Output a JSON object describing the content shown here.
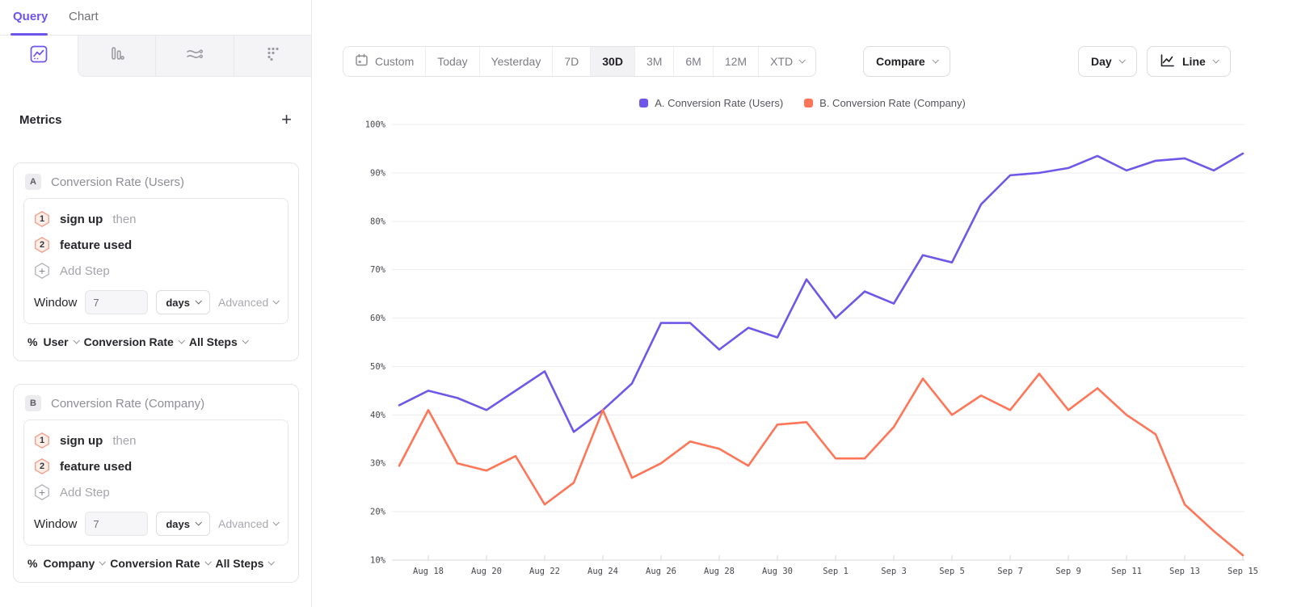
{
  "sidebar": {
    "tabs": {
      "query": "Query",
      "chart": "Chart"
    },
    "chart_type_icons": [
      "line-chart-icon",
      "bar-chart-icon",
      "flow-icon",
      "scatter-icon"
    ],
    "metrics": {
      "title": "Metrics",
      "add_label": "+"
    },
    "cards": [
      {
        "badge": "A",
        "title": "Conversion Rate (Users)",
        "steps": [
          {
            "num": "1",
            "event": "sign up",
            "suffix": "then"
          },
          {
            "num": "2",
            "event": "feature used",
            "suffix": ""
          }
        ],
        "add_step": "Add Step",
        "window_label": "Window",
        "window_value": "7",
        "window_unit": "days",
        "advanced": "Advanced",
        "measure": {
          "pct": "%",
          "entity": "User",
          "metric": "Conversion Rate",
          "steps": "All Steps"
        }
      },
      {
        "badge": "B",
        "title": "Conversion Rate (Company)",
        "steps": [
          {
            "num": "1",
            "event": "sign up",
            "suffix": "then"
          },
          {
            "num": "2",
            "event": "feature used",
            "suffix": ""
          }
        ],
        "add_step": "Add Step",
        "window_label": "Window",
        "window_value": "7",
        "window_unit": "days",
        "advanced": "Advanced",
        "measure": {
          "pct": "%",
          "entity": "Company",
          "metric": "Conversion Rate",
          "steps": "All Steps"
        }
      }
    ]
  },
  "toolbar": {
    "date_ranges": [
      "Custom",
      "Today",
      "Yesterday",
      "7D",
      "30D",
      "3M",
      "6M",
      "12M",
      "XTD"
    ],
    "active_range": "30D",
    "compare": "Compare",
    "granularity": "Day",
    "chart_type": "Line",
    "calendar_icon": "calendar",
    "line_icon": "line-chart"
  },
  "legend": [
    {
      "label": "A. Conversion Rate (Users)",
      "color": "#6e57e9"
    },
    {
      "label": "B. Conversion Rate (Company)",
      "color": "#ff7557"
    }
  ],
  "chart_data": {
    "type": "line",
    "title": "",
    "xlabel": "",
    "ylabel": "",
    "ylim": [
      10,
      100
    ],
    "yticks": [
      100,
      90,
      80,
      70,
      60,
      50,
      40,
      30,
      20,
      10
    ],
    "ytick_format": "percent",
    "grid": "horizontal",
    "legend_position": "top-center",
    "categories": [
      "Aug 17",
      "Aug 18",
      "Aug 19",
      "Aug 20",
      "Aug 21",
      "Aug 22",
      "Aug 23",
      "Aug 24",
      "Aug 25",
      "Aug 26",
      "Aug 27",
      "Aug 28",
      "Aug 29",
      "Aug 30",
      "Aug 31",
      "Sep 1",
      "Sep 2",
      "Sep 3",
      "Sep 4",
      "Sep 5",
      "Sep 6",
      "Sep 7",
      "Sep 8",
      "Sep 9",
      "Sep 10",
      "Sep 11",
      "Sep 12",
      "Sep 13",
      "Sep 14",
      "Sep 15"
    ],
    "x_tick_labels": [
      "Aug 18",
      "Aug 20",
      "Aug 22",
      "Aug 24",
      "Aug 26",
      "Aug 28",
      "Aug 30",
      "Sep 1",
      "Sep 3",
      "Sep 5",
      "Sep 7",
      "Sep 9",
      "Sep 11",
      "Sep 13",
      "Sep 15"
    ],
    "series": [
      {
        "name": "A. Conversion Rate (Users)",
        "color": "#6e57e9",
        "values": [
          42,
          45,
          43.5,
          41,
          45,
          49,
          36.5,
          41,
          46.5,
          59,
          59,
          53.5,
          58,
          56,
          68,
          60,
          65.5,
          63,
          73,
          71.5,
          83.5,
          89.5,
          90,
          91,
          93.5,
          90.5,
          92.5,
          93,
          90.5,
          94
        ]
      },
      {
        "name": "B. Conversion Rate (Company)",
        "color": "#ff7557",
        "values": [
          29.5,
          41,
          30,
          28.5,
          31.5,
          21.5,
          26,
          41,
          27,
          30,
          34.5,
          33,
          29.5,
          38,
          38.5,
          31,
          31,
          37.5,
          47.5,
          40,
          44,
          41,
          48.5,
          41,
          45.5,
          40,
          36,
          21.5,
          16,
          11
        ]
      }
    ]
  }
}
